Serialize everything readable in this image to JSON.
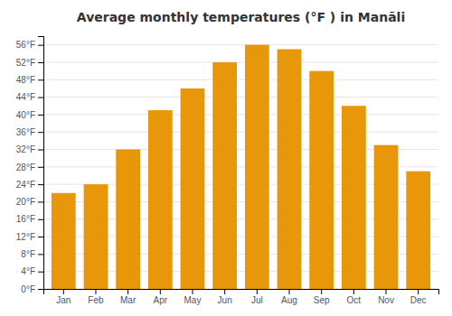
{
  "chart_data": {
    "type": "bar",
    "title": "Average monthly temperatures (°F ) in Manāli",
    "categories": [
      "Jan",
      "Feb",
      "Mar",
      "Apr",
      "May",
      "Jun",
      "Jul",
      "Aug",
      "Sep",
      "Oct",
      "Nov",
      "Dec"
    ],
    "values": [
      22,
      24,
      32,
      41,
      46,
      52,
      56,
      55,
      50,
      42,
      33,
      27
    ],
    "color": "#E8960A",
    "ylim": [
      0,
      58
    ],
    "yticks": [
      {
        "value": 0,
        "label": "0°F"
      },
      {
        "value": 4,
        "label": "4°F"
      },
      {
        "value": 8,
        "label": "8°F"
      },
      {
        "value": 12,
        "label": "12°F"
      },
      {
        "value": 16,
        "label": "16°F"
      },
      {
        "value": 20,
        "label": "20°F"
      },
      {
        "value": 24,
        "label": "24°F"
      },
      {
        "value": 28,
        "label": "28°F"
      },
      {
        "value": 32,
        "label": "32°F"
      },
      {
        "value": 36,
        "label": "36°F"
      },
      {
        "value": 40,
        "label": "40°F"
      },
      {
        "value": 44,
        "label": "44°F"
      },
      {
        "value": 48,
        "label": "48°F"
      },
      {
        "value": 52,
        "label": "52°F"
      },
      {
        "value": 56,
        "label": "56°F"
      }
    ],
    "grid": true
  }
}
